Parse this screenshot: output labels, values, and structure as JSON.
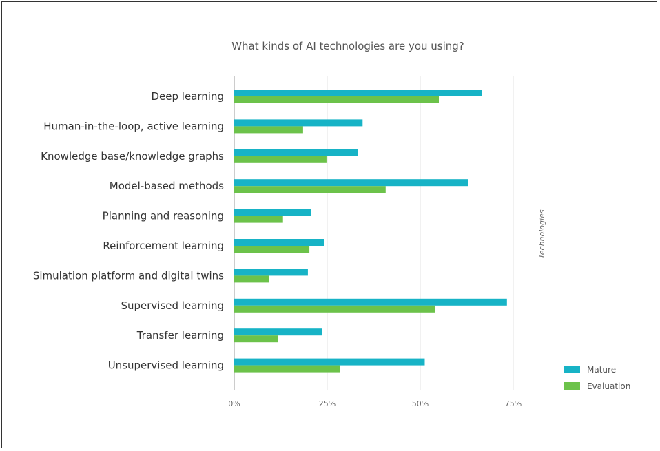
{
  "chart_data": {
    "type": "bar",
    "orientation": "horizontal",
    "title": "What kinds of AI technologies are you using?",
    "ylabel": "Technologies",
    "xlabel": "",
    "categories": [
      "Deep learning",
      "Human-in-the-loop, active learning",
      "Knowledge base/knowledge graphs",
      "Model-based methods",
      "Planning and reasoning",
      "Reinforcement learning",
      "Simulation platform and digital twins",
      "Supervised learning",
      "Transfer learning",
      "Unsupervised learning"
    ],
    "series": [
      {
        "name": "Mature",
        "color": "#17b3c6",
        "values": [
          66.5,
          34.5,
          33.3,
          62.8,
          20.7,
          24.1,
          19.8,
          73.3,
          23.7,
          51.2
        ]
      },
      {
        "name": "Evaluation",
        "color": "#6cc24a",
        "values": [
          55.0,
          18.5,
          24.8,
          40.7,
          13.1,
          20.2,
          9.4,
          53.9,
          11.7,
          28.4
        ]
      }
    ],
    "xlim": [
      0,
      75
    ],
    "xticks": [
      0,
      25,
      50,
      75
    ],
    "xtick_labels": [
      "0%",
      "25%",
      "50%",
      "75%"
    ],
    "grid": true,
    "legend_position": "bottom-right"
  }
}
